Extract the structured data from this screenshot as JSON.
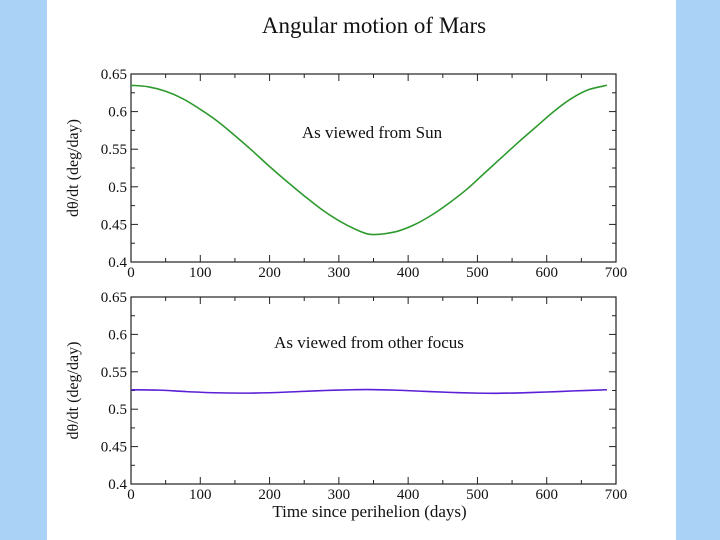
{
  "figure": {
    "title": "Angular motion of Mars",
    "colors": {
      "side_band": "#a9d2f6",
      "background": "#ffffff",
      "axis": "#222222"
    }
  },
  "chart_data": [
    {
      "type": "line",
      "annotation": "As viewed from Sun",
      "xlabel": "",
      "ylabel": "dθ/dt (deg/day)",
      "xlim": [
        0,
        700
      ],
      "ylim": [
        0.4,
        0.65
      ],
      "xticks": [
        0,
        100,
        200,
        300,
        400,
        500,
        600,
        700
      ],
      "yticks": [
        0.4,
        0.45,
        0.5,
        0.55,
        0.6,
        0.65
      ],
      "grid": false,
      "series": [
        {
          "color": "#2e9a2e",
          "x": [
            0,
            25,
            50,
            75,
            100,
            125,
            150,
            175,
            200,
            225,
            250,
            275,
            300,
            325,
            343,
            360,
            385,
            410,
            435,
            460,
            485,
            510,
            535,
            560,
            585,
            610,
            635,
            660,
            687
          ],
          "y": [
            0.635,
            0.633,
            0.627,
            0.617,
            0.603,
            0.587,
            0.568,
            0.548,
            0.527,
            0.507,
            0.488,
            0.47,
            0.455,
            0.443,
            0.437,
            0.437,
            0.441,
            0.45,
            0.463,
            0.479,
            0.497,
            0.518,
            0.539,
            0.56,
            0.58,
            0.6,
            0.617,
            0.629,
            0.635
          ]
        }
      ]
    },
    {
      "type": "line",
      "annotation": "As viewed from other focus",
      "xlabel": "Time since perihelion (days)",
      "ylabel": "dθ/dt (deg/day)",
      "xlim": [
        0,
        700
      ],
      "ylim": [
        0.4,
        0.65
      ],
      "xticks": [
        0,
        100,
        200,
        300,
        400,
        500,
        600,
        700
      ],
      "yticks": [
        0.4,
        0.45,
        0.5,
        0.55,
        0.6,
        0.65
      ],
      "grid": false,
      "series": [
        {
          "color": "#5a1fd6",
          "x": [
            0,
            40,
            80,
            120,
            160,
            200,
            240,
            280,
            320,
            343,
            380,
            420,
            460,
            500,
            527,
            560,
            600,
            640,
            687
          ],
          "y": [
            0.526,
            0.5255,
            0.5235,
            0.522,
            0.5215,
            0.522,
            0.5235,
            0.525,
            0.526,
            0.5262,
            0.5255,
            0.524,
            0.5225,
            0.5215,
            0.5213,
            0.5218,
            0.523,
            0.5245,
            0.526
          ]
        }
      ]
    }
  ]
}
